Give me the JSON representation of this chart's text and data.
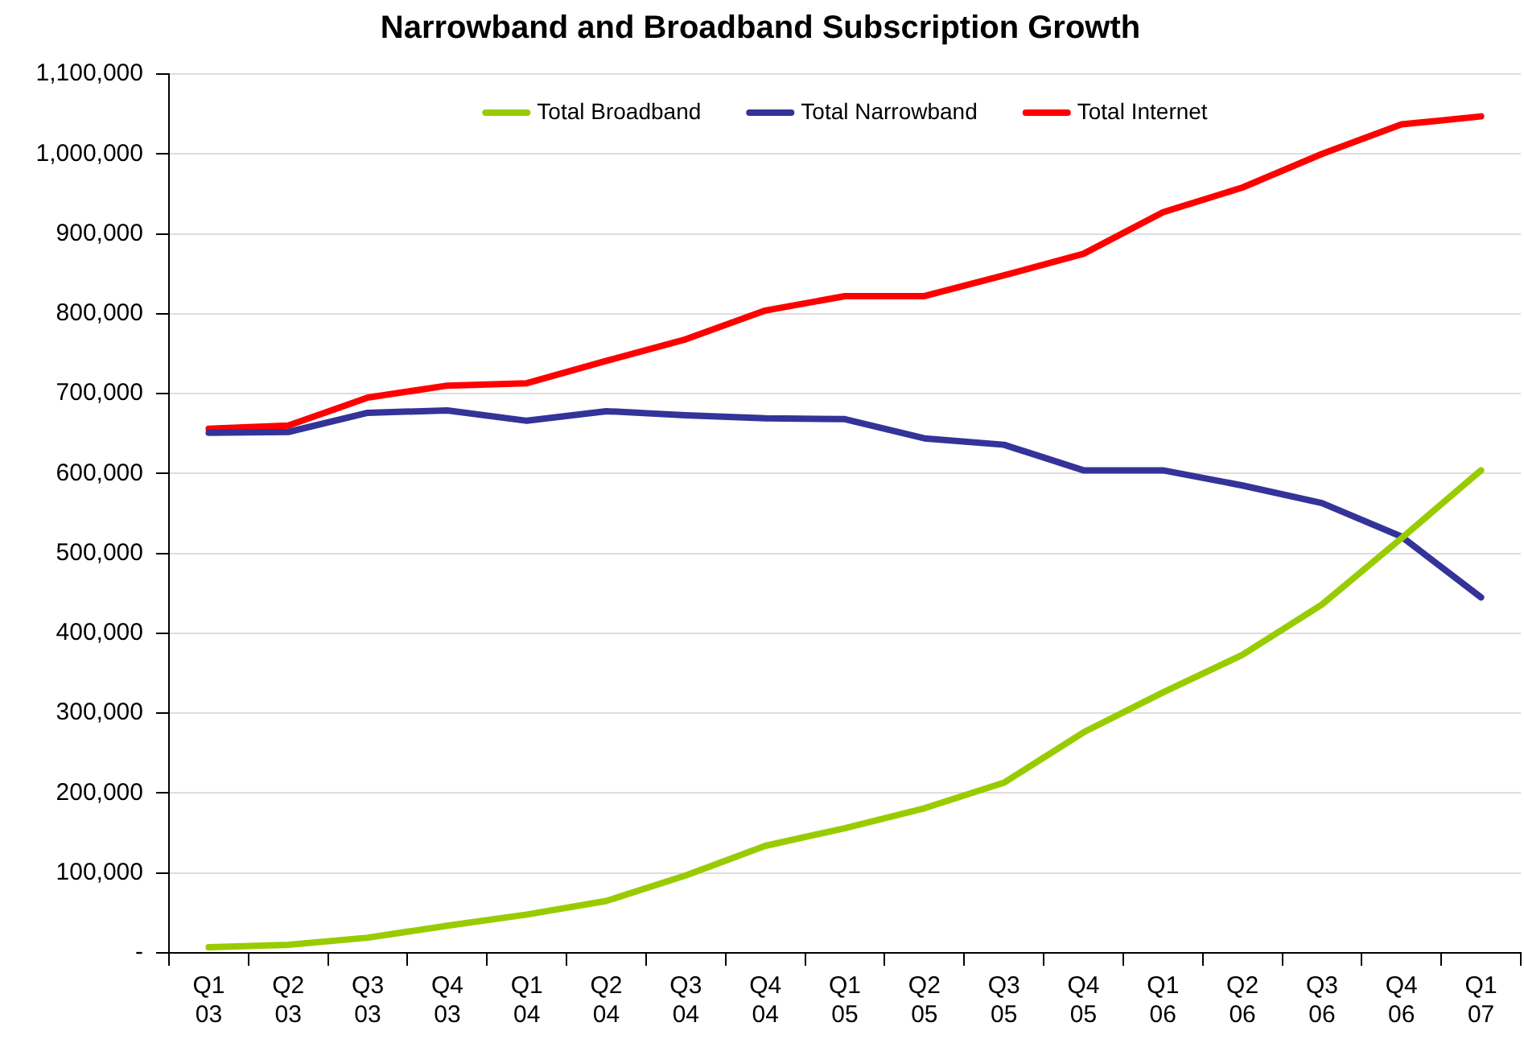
{
  "chart_data": {
    "type": "line",
    "title": "Narrowband and Broadband Subscription Growth",
    "categories": [
      "Q1 03",
      "Q2 03",
      "Q3 03",
      "Q4 03",
      "Q1 04",
      "Q2 04",
      "Q3 04",
      "Q4 04",
      "Q1 05",
      "Q2 05",
      "Q3 05",
      "Q4 05",
      "Q1 06",
      "Q2 06",
      "Q3 06",
      "Q4 06",
      "Q1 07"
    ],
    "series": [
      {
        "name": "Total Broadband",
        "color": "#99cc00",
        "values": [
          7000,
          10000,
          19000,
          34000,
          48000,
          65000,
          97000,
          134000,
          156000,
          181000,
          213000,
          276000,
          326000,
          373000,
          436000,
          519000,
          604000
        ]
      },
      {
        "name": "Total Narrowband",
        "color": "#333399",
        "values": [
          651000,
          652000,
          676000,
          679000,
          666000,
          678000,
          673000,
          669000,
          668000,
          644000,
          636000,
          604000,
          604000,
          585000,
          563000,
          521000,
          445000
        ]
      },
      {
        "name": "Total Internet",
        "color": "#ff0000",
        "values": [
          656000,
          660000,
          695000,
          710000,
          713000,
          741000,
          768000,
          804000,
          822000,
          822000,
          848000,
          875000,
          927000,
          958000,
          1000000,
          1037000,
          1047000
        ]
      }
    ],
    "ylim": [
      0,
      1100000
    ],
    "yticks": [
      {
        "value": 0,
        "label": "-"
      },
      {
        "value": 100000,
        "label": "100,000"
      },
      {
        "value": 200000,
        "label": "200,000"
      },
      {
        "value": 300000,
        "label": "300,000"
      },
      {
        "value": 400000,
        "label": "400,000"
      },
      {
        "value": 500000,
        "label": "500,000"
      },
      {
        "value": 600000,
        "label": "600,000"
      },
      {
        "value": 700000,
        "label": "700,000"
      },
      {
        "value": 800000,
        "label": "800,000"
      },
      {
        "value": 900000,
        "label": "900,000"
      },
      {
        "value": 1000000,
        "label": "1,000,000"
      },
      {
        "value": 1100000,
        "label": "1,100,000"
      }
    ],
    "grid": "y",
    "legend": "top",
    "marker": "none",
    "line_style": "solid"
  }
}
